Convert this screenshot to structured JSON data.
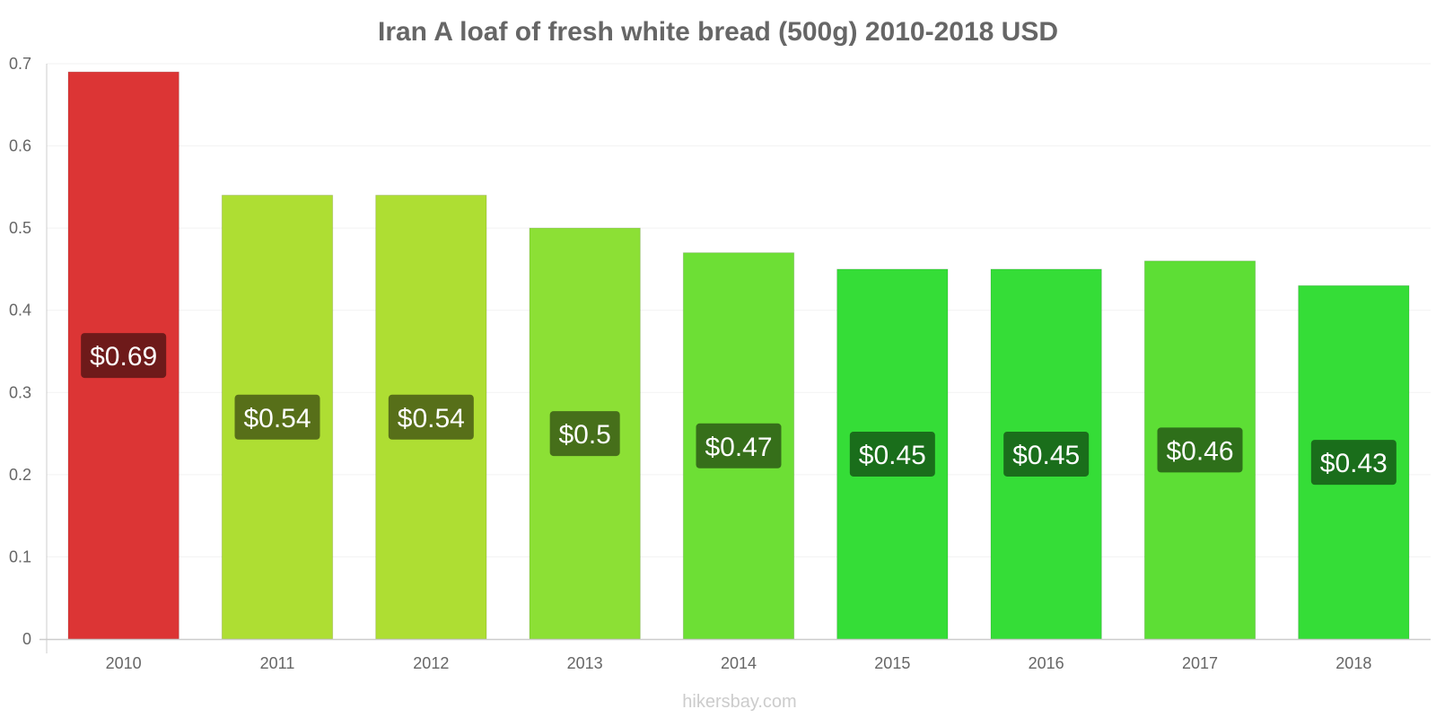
{
  "chart_data": {
    "type": "bar",
    "title": "Iran A loaf of fresh white bread (500g) 2010-2018 USD",
    "categories": [
      "2010",
      "2011",
      "2012",
      "2013",
      "2014",
      "2015",
      "2016",
      "2017",
      "2018"
    ],
    "values": [
      0.69,
      0.54,
      0.54,
      0.5,
      0.47,
      0.45,
      0.45,
      0.46,
      0.43
    ],
    "data_labels": [
      "$0.69",
      "$0.54",
      "$0.54",
      "$0.5",
      "$0.47",
      "$0.45",
      "$0.45",
      "$0.46",
      "$0.43"
    ],
    "bar_colors": [
      "#dc3535",
      "#aede33",
      "#aede33",
      "#8ce035",
      "#6ddf35",
      "#35dd37",
      "#35dd37",
      "#5dde35",
      "#35dd37"
    ],
    "label_colors": [
      "#6e1a1a",
      "#576f19",
      "#576f19",
      "#466f1a",
      "#366f1a",
      "#1a6e1b",
      "#1a6e1b",
      "#2e6f1a",
      "#1a6e1b"
    ],
    "ylim": [
      0,
      0.7
    ],
    "yticks": [
      "0",
      "0.1",
      "0.2",
      "0.3",
      "0.4",
      "0.5",
      "0.6",
      "0.7"
    ],
    "xlabel": "",
    "ylabel": "",
    "grid": true,
    "legend": "none"
  },
  "watermark": "hikersbay.com"
}
